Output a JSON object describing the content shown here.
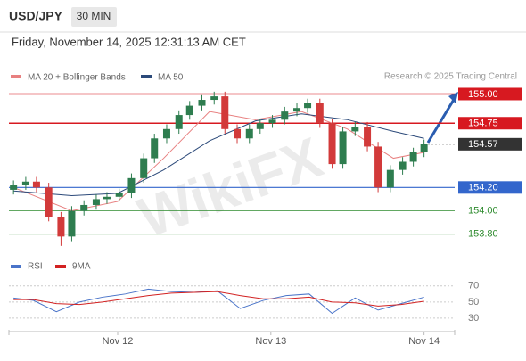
{
  "chart_data": {
    "type": "candlestick",
    "title": "USD/JPY",
    "timeframe": "30 MIN",
    "subtitle": "Friday, November 14, 2025 12:31:13 AM CET",
    "credit": "Research © 2025 Trading Central",
    "watermark": "WikiFX",
    "xlim": [
      11.29,
      14.2
    ],
    "xticks": [
      {
        "value": 12,
        "label": "Nov 12"
      },
      {
        "value": 13,
        "label": "Nov 13"
      },
      {
        "value": 14,
        "label": "Nov 14"
      }
    ],
    "ylim": [
      153.63,
      155.08
    ],
    "up_color": "#2e7d4f",
    "down_color": "#d23a3a",
    "x": [
      11.32,
      11.4,
      11.47,
      11.55,
      11.63,
      11.7,
      11.78,
      11.86,
      11.93,
      12.01,
      12.09,
      12.17,
      12.24,
      12.32,
      12.4,
      12.47,
      12.55,
      12.63,
      12.7,
      12.78,
      12.86,
      12.93,
      13.01,
      13.09,
      13.17,
      13.24,
      13.32,
      13.4,
      13.47,
      13.55,
      13.63,
      13.7,
      13.78,
      13.86,
      13.93,
      14.0
    ],
    "open": [
      154.18,
      154.22,
      154.25,
      154.2,
      153.95,
      153.78,
      154.0,
      154.05,
      154.1,
      154.12,
      154.15,
      154.28,
      154.45,
      154.62,
      154.7,
      154.82,
      154.9,
      154.95,
      154.98,
      154.7,
      154.62,
      154.7,
      154.75,
      154.78,
      154.85,
      154.88,
      154.92,
      154.75,
      154.4,
      154.68,
      154.72,
      154.55,
      154.2,
      154.35,
      154.42,
      154.5
    ],
    "high": [
      154.26,
      154.29,
      154.29,
      154.24,
      153.99,
      154.04,
      154.09,
      154.14,
      154.16,
      154.19,
      154.32,
      154.49,
      154.66,
      154.74,
      154.86,
      154.94,
      154.99,
      155.02,
      155.02,
      154.74,
      154.74,
      154.79,
      154.82,
      154.89,
      154.92,
      154.96,
      154.96,
      154.79,
      154.72,
      154.76,
      154.76,
      154.59,
      154.39,
      154.46,
      154.54,
      154.61
    ],
    "low": [
      154.14,
      154.18,
      154.16,
      153.91,
      153.7,
      153.74,
      153.96,
      154.01,
      154.06,
      154.08,
      154.11,
      154.24,
      154.41,
      154.58,
      154.66,
      154.78,
      154.86,
      154.91,
      154.66,
      154.58,
      154.58,
      154.66,
      154.71,
      154.74,
      154.81,
      154.84,
      154.71,
      154.36,
      154.36,
      154.64,
      154.51,
      154.16,
      154.16,
      154.31,
      154.38,
      154.46
    ],
    "close": [
      154.22,
      154.25,
      154.2,
      153.95,
      153.78,
      154.0,
      154.05,
      154.1,
      154.12,
      154.15,
      154.28,
      154.45,
      154.62,
      154.7,
      154.82,
      154.9,
      154.95,
      154.98,
      154.7,
      154.62,
      154.7,
      154.75,
      154.78,
      154.85,
      154.88,
      154.92,
      154.75,
      154.4,
      154.68,
      154.72,
      154.55,
      154.2,
      154.35,
      154.42,
      154.5,
      154.57
    ],
    "series": [
      {
        "name": "MA 20 + Bollinger Bands",
        "color": "#e88080",
        "x": [
          11.32,
          11.7,
          12.0,
          12.3,
          12.6,
          12.9,
          13.2,
          13.5,
          13.8,
          14.0
        ],
        "values": [
          154.2,
          154.0,
          154.08,
          154.45,
          154.85,
          154.78,
          154.85,
          154.7,
          154.45,
          154.5
        ]
      },
      {
        "name": "MA 50",
        "color": "#2c4a7a",
        "x": [
          11.32,
          11.7,
          12.0,
          12.3,
          12.6,
          12.9,
          13.2,
          13.5,
          13.8,
          14.0
        ],
        "values": [
          154.17,
          154.13,
          154.15,
          154.35,
          154.6,
          154.77,
          154.83,
          154.78,
          154.68,
          154.62
        ]
      }
    ],
    "levels": [
      {
        "value": 155.0,
        "label": "155.00",
        "color": "#d71920",
        "style": "box"
      },
      {
        "value": 154.75,
        "label": "154.75",
        "color": "#d71920",
        "style": "box"
      },
      {
        "value": 154.57,
        "label": "154.57",
        "color": "#333333",
        "style": "current"
      },
      {
        "value": 154.2,
        "label": "154.20",
        "color": "#3366cc",
        "style": "box"
      },
      {
        "value": 154.0,
        "label": "154.00",
        "color": "#2e8b2e",
        "style": "text"
      },
      {
        "value": 153.8,
        "label": "153.80",
        "color": "#2e8b2e",
        "style": "text"
      }
    ],
    "indicator": {
      "ylim": [
        10,
        93
      ],
      "yticks": [
        70,
        50,
        30
      ],
      "series": [
        {
          "name": "RSI",
          "color": "#4a74c9",
          "x": [
            11.32,
            11.45,
            11.6,
            11.75,
            11.9,
            12.05,
            12.2,
            12.35,
            12.5,
            12.65,
            12.8,
            12.95,
            13.1,
            13.25,
            13.4,
            13.55,
            13.7,
            13.85,
            14.0
          ],
          "values": [
            55,
            52,
            38,
            50,
            56,
            60,
            66,
            63,
            62,
            64,
            42,
            52,
            58,
            60,
            36,
            55,
            40,
            48,
            56
          ]
        },
        {
          "name": "9MA",
          "color": "#d22222",
          "x": [
            11.32,
            11.45,
            11.6,
            11.75,
            11.9,
            12.05,
            12.2,
            12.35,
            12.5,
            12.65,
            12.8,
            12.95,
            13.1,
            13.25,
            13.4,
            13.55,
            13.7,
            13.85,
            14.0
          ],
          "values": [
            53,
            53,
            48,
            47,
            50,
            54,
            58,
            61,
            62,
            63,
            58,
            54,
            54,
            56,
            50,
            49,
            45,
            47,
            51
          ]
        }
      ]
    }
  }
}
